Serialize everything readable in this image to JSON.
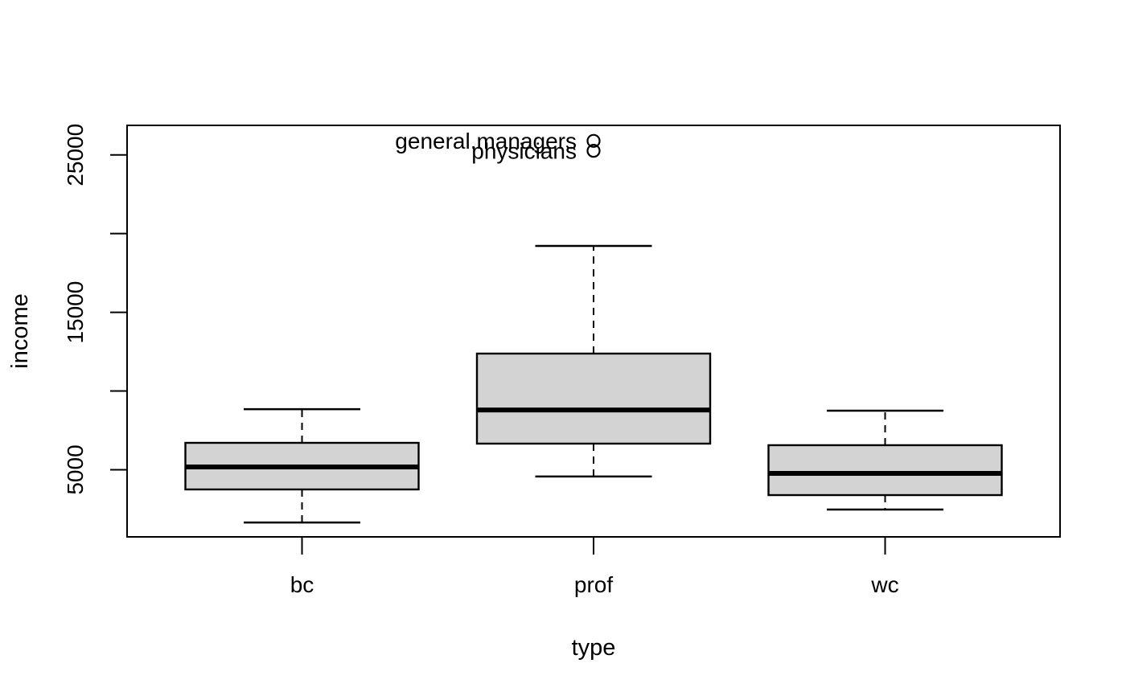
{
  "figure": {
    "background": "#ffffff"
  },
  "chart_data": {
    "type": "boxplot",
    "title": "",
    "xlabel": "type",
    "ylabel": "income",
    "categories": [
      "bc",
      "prof",
      "wc"
    ],
    "positions": [
      1,
      2,
      3
    ],
    "xlim": [
      0.4,
      3.6
    ],
    "ylim": [
      737,
      26876
    ],
    "y_ticks": [
      {
        "value": 5000,
        "label": "5000"
      },
      {
        "value": 10000,
        "label": ""
      },
      {
        "value": 15000,
        "label": "15000"
      },
      {
        "value": 20000,
        "label": ""
      },
      {
        "value": 25000,
        "label": "25000"
      }
    ],
    "grid": false,
    "legend": null,
    "boxes": [
      {
        "category": "bc",
        "position": 1,
        "lower_whisker": 1650,
        "q1": 3750,
        "median": 5180,
        "q3": 6710,
        "upper_whisker": 8850,
        "outliers": []
      },
      {
        "category": "prof",
        "position": 2,
        "lower_whisker": 4570,
        "q1": 6660,
        "median": 8800,
        "q3": 12380,
        "upper_whisker": 19220,
        "outliers": [
          {
            "label": "general.managers",
            "value": 25890
          },
          {
            "label": "physicians",
            "value": 25260
          }
        ]
      },
      {
        "category": "wc",
        "position": 3,
        "lower_whisker": 2470,
        "q1": 3390,
        "median": 4770,
        "q3": 6560,
        "upper_whisker": 8750,
        "outliers": []
      }
    ],
    "style": {
      "box_fill": "#d3d3d3",
      "line_color": "#000000",
      "median_color": "#000000",
      "box_width_units": 0.8,
      "cap_width_units": 0.4,
      "whisker_linetype": "dashed"
    }
  }
}
